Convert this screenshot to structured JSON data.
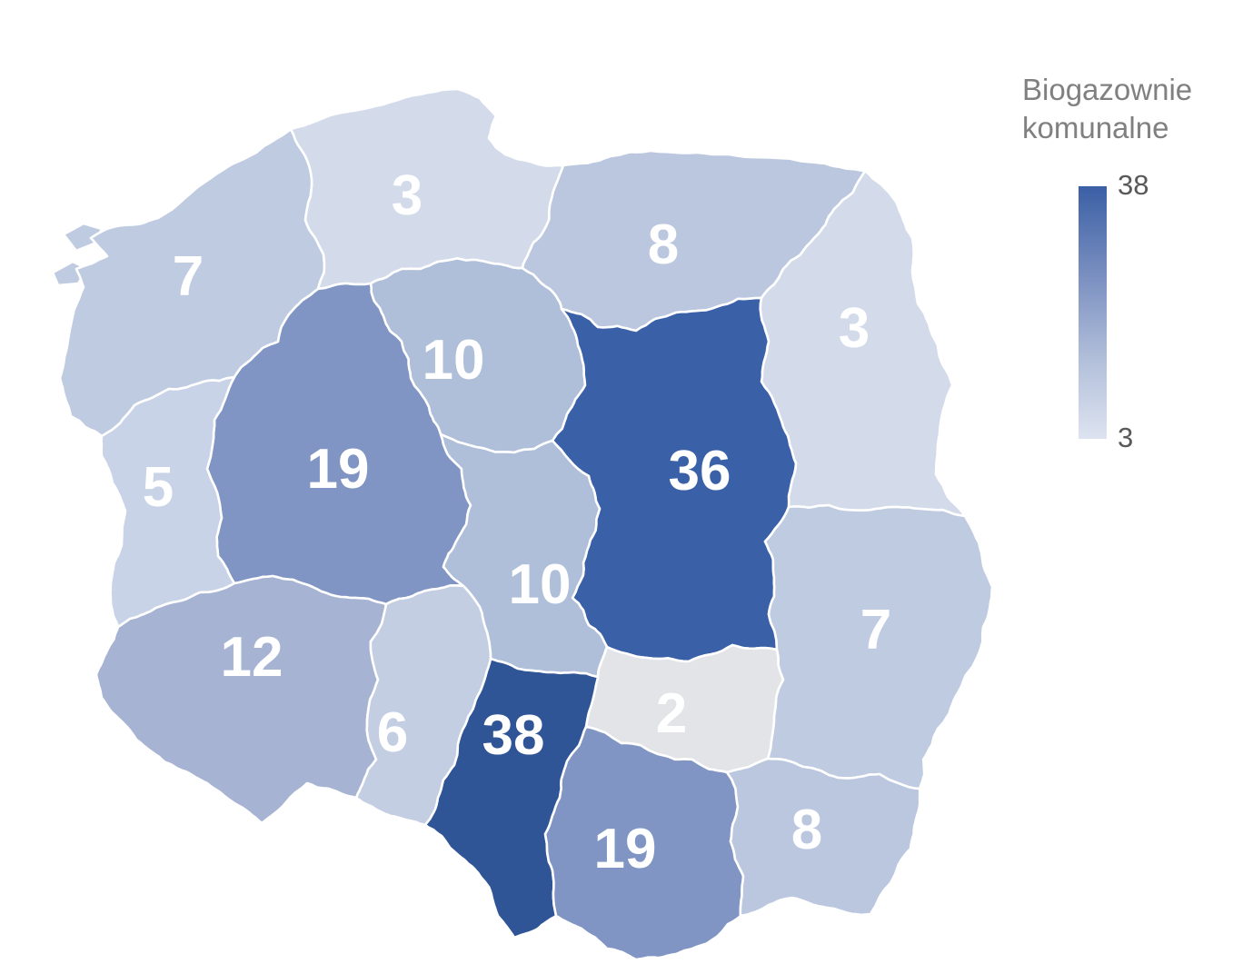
{
  "legend": {
    "title_line1": "Biogazownie",
    "title_line2": "komunalne",
    "max_label": "38",
    "min_label": "3",
    "gradient_top_color": "#3B5FA5",
    "gradient_bottom_color": "#DDE3F0"
  },
  "chart_data": {
    "type": "choropleth_map",
    "title": "Biogazownie komunalne",
    "geography": "Poland voivodeships",
    "legend_min": 3,
    "legend_max": 38,
    "out_of_range_color": "#E3E4E8",
    "regions": [
      {
        "key": "zachodniopomorskie",
        "name": "Zachodniopomorskie",
        "value": 7,
        "color": "#BFCBE1"
      },
      {
        "key": "pomorskie",
        "name": "Pomorskie",
        "value": 3,
        "color": "#D3DBEB"
      },
      {
        "key": "warminsko-mazurskie",
        "name": "Warmińsko-Mazurskie",
        "value": 8,
        "color": "#BAC7DF"
      },
      {
        "key": "podlaskie",
        "name": "Podlaskie",
        "value": 3,
        "color": "#D3DBEB"
      },
      {
        "key": "kujawsko-pomorskie",
        "name": "Kujawsko-Pomorskie",
        "value": 10,
        "color": "#AFBED9"
      },
      {
        "key": "wielkopolskie",
        "name": "Wielkopolskie",
        "value": 19,
        "color": "#8095C3"
      },
      {
        "key": "lubuskie",
        "name": "Lubuskie",
        "value": 5,
        "color": "#C9D3E7"
      },
      {
        "key": "mazowieckie",
        "name": "Mazowieckie",
        "value": 36,
        "color": "#3A60A8"
      },
      {
        "key": "lodzkie",
        "name": "Łódzkie",
        "value": 10,
        "color": "#AFBED9"
      },
      {
        "key": "lubelskie",
        "name": "Lubelskie",
        "value": 7,
        "color": "#BFCBE1"
      },
      {
        "key": "dolnoslaskie",
        "name": "Dolnośląskie",
        "value": 12,
        "color": "#A6B3D2"
      },
      {
        "key": "opolskie",
        "name": "Opolskie",
        "value": 6,
        "color": "#C3CEE3"
      },
      {
        "key": "swietokrzyskie",
        "name": "Świętokrzyskie",
        "value": 2,
        "color": "#E3E4E8"
      },
      {
        "key": "slaskie",
        "name": "Śląskie",
        "value": 38,
        "color": "#2F5597"
      },
      {
        "key": "malopolskie",
        "name": "Małopolskie",
        "value": 19,
        "color": "#8095C3"
      },
      {
        "key": "podkarpackie",
        "name": "Podkarpackie",
        "value": 8,
        "color": "#BAC7DF"
      }
    ]
  }
}
